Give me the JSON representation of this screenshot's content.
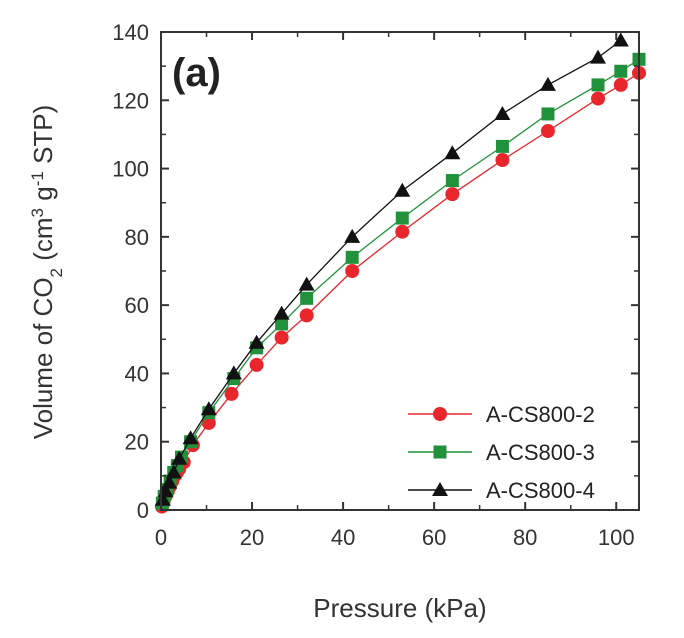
{
  "chart_data": {
    "type": "scatter",
    "panel_label": "(a)",
    "xlabel": "Pressure (kPa)",
    "ylabel": {
      "prefix": "Volume of CO",
      "co2_sub": "2",
      "middle": " (cm",
      "cm_sup": "3",
      "g_text": " g",
      "g_sup": "-1",
      "suffix": " STP)"
    },
    "xlim": [
      0,
      105
    ],
    "ylim": [
      0,
      140
    ],
    "x_ticks": [
      "0",
      "20",
      "40",
      "60",
      "80",
      "100"
    ],
    "y_ticks": [
      "0",
      "20",
      "40",
      "60",
      "80",
      "100",
      "120",
      "140"
    ],
    "legend_position": "bottom-right",
    "series": [
      {
        "name": "A-CS800-2",
        "color": "#e8262b",
        "marker": "circle",
        "x": [
          0.2,
          0.5,
          1,
          1.5,
          2,
          2.5,
          3,
          3.5,
          4,
          5,
          7,
          10.5,
          15.5,
          21,
          26.5,
          32,
          42,
          53,
          64,
          75,
          85,
          96,
          101,
          105
        ],
        "y": [
          1,
          2,
          4,
          5.5,
          7,
          8.5,
          10,
          11,
          12,
          14,
          19,
          25.5,
          34,
          42.5,
          50.5,
          57,
          70,
          81.5,
          92.5,
          102.5,
          111,
          120.5,
          124.5,
          128
        ]
      },
      {
        "name": "A-CS800-3",
        "color": "#22913c",
        "marker": "square",
        "x": [
          0.3,
          0.7,
          1.2,
          2,
          2.8,
          3.6,
          4.5,
          6.5,
          10.5,
          16,
          21,
          26.5,
          32,
          42,
          53,
          64,
          75,
          85,
          96,
          101,
          105
        ],
        "y": [
          2,
          4,
          6,
          8.5,
          11,
          13,
          15.5,
          20,
          28.5,
          38.5,
          47.5,
          54.5,
          62,
          74,
          85.5,
          96.5,
          106.5,
          116,
          124.5,
          128.5,
          132
        ]
      },
      {
        "name": "A-CS800-4",
        "color": "#111111",
        "marker": "triangle",
        "x": [
          0.4,
          1,
          1.8,
          2.8,
          4,
          6.5,
          10.5,
          16,
          21,
          26.5,
          32,
          42,
          53,
          64,
          75,
          85,
          96,
          101
        ],
        "y": [
          3,
          5.5,
          8,
          11,
          15,
          21,
          29.5,
          40,
          49,
          57.5,
          66,
          80,
          93.5,
          104.5,
          116,
          124.5,
          132.5,
          137.5
        ]
      }
    ]
  }
}
